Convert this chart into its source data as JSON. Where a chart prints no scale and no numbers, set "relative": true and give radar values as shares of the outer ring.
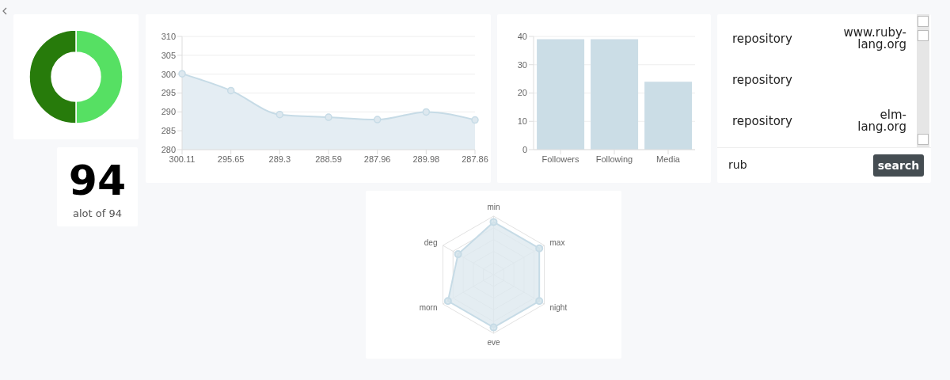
{
  "chart_data": [
    {
      "type": "donut",
      "categories": [
        null,
        null
      ],
      "values": [
        50,
        50
      ],
      "colors": [
        "#56e063",
        "#277b0b"
      ]
    },
    {
      "type": "area",
      "categories": [
        "300.11",
        "295.65",
        "289.3",
        "288.59",
        "287.96",
        "289.98",
        "287.86"
      ],
      "values": [
        300.11,
        295.65,
        289.3,
        288.59,
        287.96,
        289.98,
        287.86
      ],
      "color": "#c6dbe6",
      "ylim": [
        280,
        310
      ],
      "yticks": [
        280,
        285,
        290,
        295,
        300,
        305,
        310
      ],
      "grid": "y",
      "marker": "circle"
    },
    {
      "type": "bar",
      "categories": [
        "Followers",
        "Following",
        "Media"
      ],
      "values": [
        39,
        39,
        24
      ],
      "color": "#cbdde6",
      "ylim": [
        0,
        40
      ],
      "yticks": [
        0,
        10,
        20,
        30,
        40
      ],
      "grid": "y"
    },
    {
      "type": "other",
      "categories": [
        "repository",
        "repository",
        "repository"
      ],
      "y2_categories": [
        "www.ruby-lang.org",
        null,
        "elm-lang.org"
      ],
      "annotations": [
        "rub",
        "search"
      ]
    },
    {
      "type": "other",
      "title": "94",
      "subtitle": "alot of 94"
    },
    {
      "type": "radar",
      "categories": [
        "min",
        "max",
        "night",
        "eve",
        "morn",
        "deg"
      ],
      "relative": true,
      "series": [
        {
          "color": "#c6dbe6",
          "values": [
            0.9,
            0.9,
            0.9,
            0.9,
            0.9,
            0.7
          ]
        }
      ]
    }
  ]
}
